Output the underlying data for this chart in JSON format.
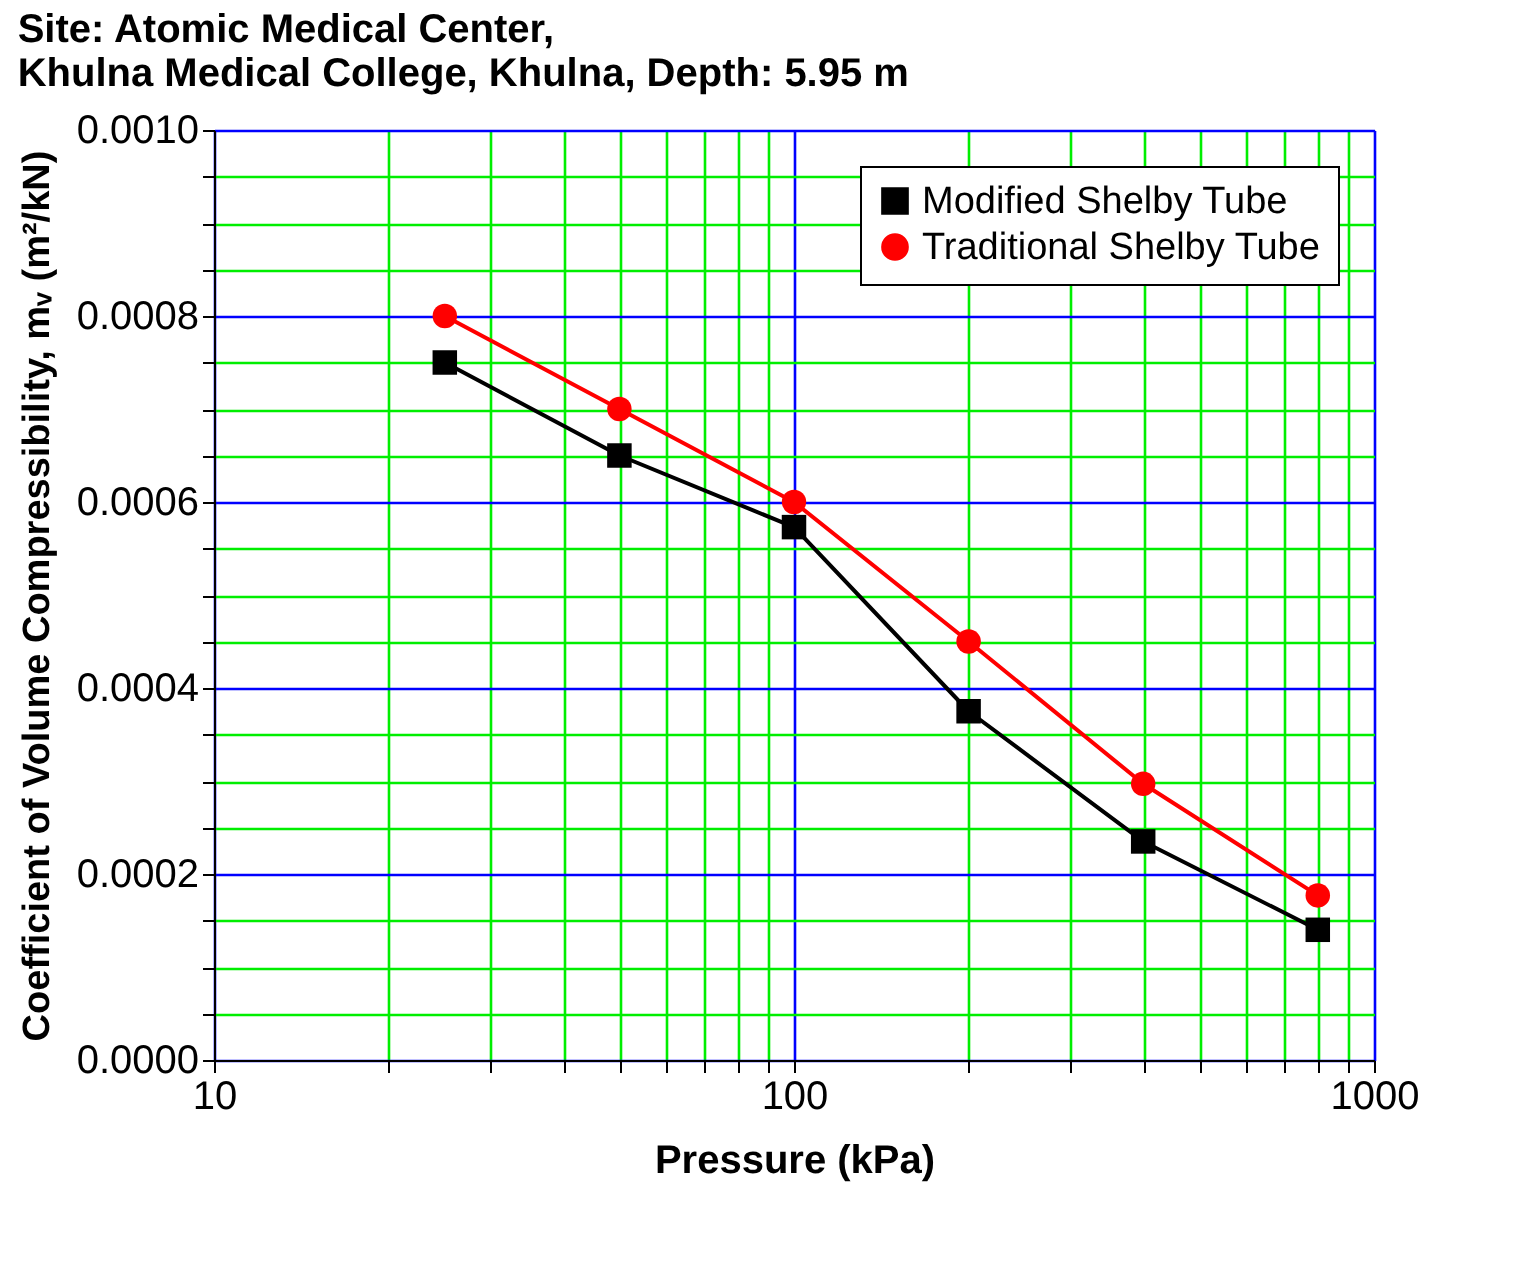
{
  "chart_data": {
    "type": "line",
    "title": "Site: Atomic Medical Center,\nKhulna Medical College, Khulna, Depth: 5.95 m",
    "xlabel": "Pressure (kPa)",
    "ylabel": "Coefficient of Volume Compressibility, mᵥ (m²/kN)",
    "x": [
      25,
      50,
      100,
      200,
      400,
      800
    ],
    "series": [
      {
        "name": "Modified Shelby Tube",
        "color": "#000000",
        "marker": "square",
        "values": [
          0.00075,
          0.00065,
          0.000573,
          0.000375,
          0.000235,
          0.00014
        ]
      },
      {
        "name": "Traditional Shelby Tube",
        "color": "#ff0000",
        "marker": "circle",
        "values": [
          0.0008,
          0.0007,
          0.0006,
          0.00045,
          0.000297,
          0.000177
        ]
      }
    ],
    "log": "x",
    "xlim": [
      10,
      1000
    ],
    "xticks": [
      10,
      {
        "value": 20,
        "label": null
      },
      {
        "value": 30,
        "label": null
      },
      {
        "value": 40,
        "label": null
      },
      {
        "value": 50,
        "label": null
      },
      {
        "value": 60,
        "label": null
      },
      {
        "value": 70,
        "label": null
      },
      {
        "value": 80,
        "label": null
      },
      {
        "value": 90,
        "label": null
      },
      100,
      {
        "value": 200,
        "label": null
      },
      {
        "value": 300,
        "label": null
      },
      {
        "value": 400,
        "label": null
      },
      {
        "value": 500,
        "label": null
      },
      {
        "value": 600,
        "label": null
      },
      {
        "value": 700,
        "label": null
      },
      {
        "value": 800,
        "label": null
      },
      {
        "value": 900,
        "label": null
      },
      1000
    ],
    "ylim": [
      0,
      0.001
    ],
    "yticks": [
      {
        "value": 0,
        "label": "0.0000"
      },
      {
        "value": 5e-05,
        "label": null
      },
      {
        "value": 0.0001,
        "label": null
      },
      {
        "value": 0.00015,
        "label": null
      },
      {
        "value": 0.0002,
        "label": "0.0002"
      },
      {
        "value": 0.00025,
        "label": null
      },
      {
        "value": 0.0003,
        "label": null
      },
      {
        "value": 0.00035,
        "label": null
      },
      {
        "value": 0.0004,
        "label": "0.0004"
      },
      {
        "value": 0.00045,
        "label": null
      },
      {
        "value": 0.0005,
        "label": null
      },
      {
        "value": 0.00055,
        "label": null
      },
      {
        "value": 0.0006,
        "label": "0.0006"
      },
      {
        "value": 0.00065,
        "label": null
      },
      {
        "value": 0.0007,
        "label": null
      },
      {
        "value": 0.00075,
        "label": null
      },
      {
        "value": 0.0008,
        "label": "0.0008"
      },
      {
        "value": 0.00085,
        "label": null
      },
      {
        "value": 0.0009,
        "label": null
      },
      {
        "value": 0.00095,
        "label": null
      },
      {
        "value": 0.001,
        "label": "0.0010"
      }
    ],
    "grid": true,
    "legend": "top right",
    "line_style": "solid"
  }
}
